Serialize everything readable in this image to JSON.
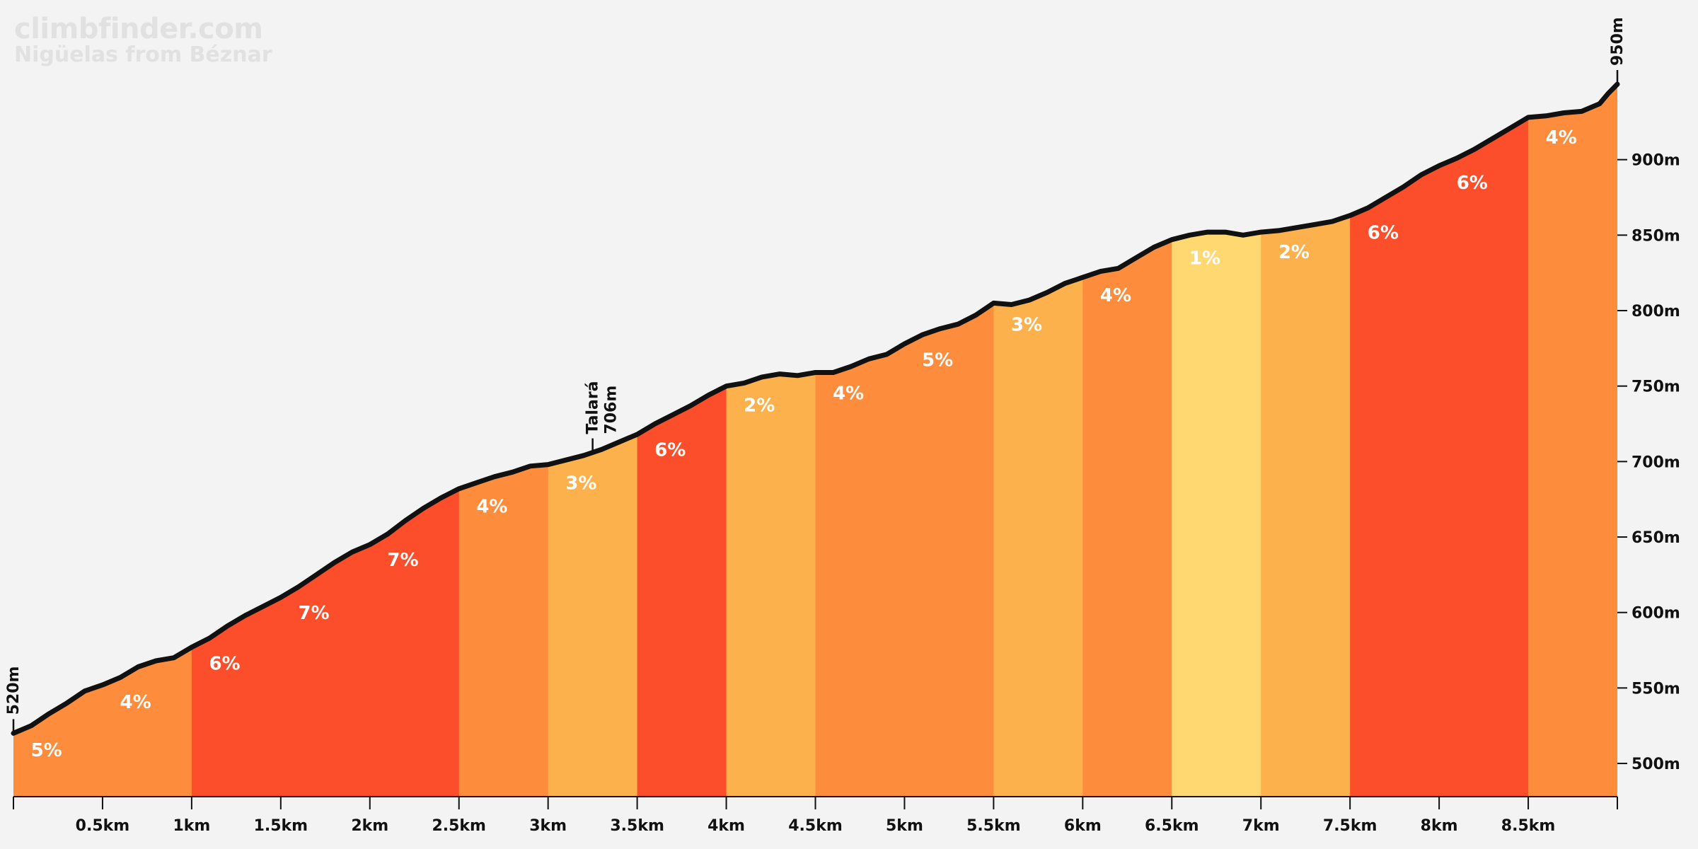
{
  "brand": {
    "site": "climbfinder.com",
    "subtitle": "Nigüelas from Béznar"
  },
  "colors": {
    "background": "#f3f3f3",
    "profile_line": "#111111",
    "grade_1": "#ffd872",
    "grade_2_3": "#fdb14c",
    "grade_4_5": "#fd8c3c",
    "grade_6_7": "#fc4e2a"
  },
  "chart_data": {
    "type": "area",
    "xlabel": "",
    "ylabel": "",
    "xlim": [
      0,
      9
    ],
    "ylim": [
      478,
      950
    ],
    "grid": false,
    "x_ticks": [
      0.5,
      1,
      1.5,
      2,
      2.5,
      3,
      3.5,
      4,
      4.5,
      5,
      5.5,
      6,
      6.5,
      7,
      7.5,
      8,
      8.5
    ],
    "x_tick_labels": [
      "0.5km",
      "1km",
      "1.5km",
      "2km",
      "2.5km",
      "3km",
      "3.5km",
      "4km",
      "4.5km",
      "5km",
      "5.5km",
      "6km",
      "6.5km",
      "7km",
      "7.5km",
      "8km",
      "8.5km"
    ],
    "y_ticks": [
      500,
      550,
      600,
      650,
      700,
      750,
      800,
      850,
      900
    ],
    "y_tick_labels": [
      "500m",
      "550m",
      "600m",
      "650m",
      "700m",
      "750m",
      "800m",
      "850m",
      "900m"
    ],
    "profile": {
      "x": [
        0,
        0.1,
        0.2,
        0.3,
        0.4,
        0.5,
        0.6,
        0.7,
        0.8,
        0.9,
        1.0,
        1.1,
        1.2,
        1.3,
        1.4,
        1.5,
        1.6,
        1.7,
        1.8,
        1.9,
        2.0,
        2.1,
        2.2,
        2.3,
        2.4,
        2.5,
        2.6,
        2.7,
        2.8,
        2.9,
        3.0,
        3.1,
        3.2,
        3.3,
        3.4,
        3.5,
        3.6,
        3.7,
        3.8,
        3.9,
        4.0,
        4.1,
        4.2,
        4.3,
        4.4,
        4.5,
        4.6,
        4.7,
        4.8,
        4.9,
        5.0,
        5.1,
        5.2,
        5.3,
        5.4,
        5.5,
        5.6,
        5.7,
        5.8,
        5.9,
        6.0,
        6.1,
        6.2,
        6.3,
        6.4,
        6.5,
        6.6,
        6.7,
        6.8,
        6.9,
        7.0,
        7.1,
        7.2,
        7.3,
        7.4,
        7.5,
        7.6,
        7.7,
        7.8,
        7.9,
        8.0,
        8.1,
        8.2,
        8.3,
        8.4,
        8.5,
        8.6,
        8.7,
        8.8,
        8.9,
        8.95,
        9.0
      ],
      "elevation": [
        520,
        525,
        533,
        540,
        548,
        552,
        557,
        564,
        568,
        570,
        577,
        583,
        591,
        598,
        604,
        610,
        617,
        625,
        633,
        640,
        645,
        652,
        661,
        669,
        676,
        682,
        686,
        690,
        693,
        697,
        698,
        701,
        704,
        708,
        713,
        718,
        725,
        731,
        737,
        744,
        750,
        752,
        756,
        758,
        757,
        759,
        759,
        763,
        768,
        771,
        778,
        784,
        788,
        791,
        797,
        805,
        804,
        807,
        812,
        818,
        822,
        826,
        828,
        835,
        842,
        847,
        850,
        852,
        852,
        850,
        852,
        853,
        855,
        857,
        859,
        863,
        868,
        875,
        882,
        890,
        896,
        901,
        907,
        914,
        921,
        928,
        929,
        931,
        932,
        937,
        944,
        950
      ]
    },
    "segments": [
      {
        "start": 0,
        "end": 1,
        "grade": "5%",
        "color": "#fd8c3c"
      },
      {
        "start": 1,
        "end": 2.5,
        "grade": "7%",
        "color": "#fc4e2a"
      },
      {
        "start": 2.5,
        "end": 3,
        "grade": "4%",
        "color": "#fd8c3c"
      },
      {
        "start": 3,
        "end": 3.5,
        "grade": "3%",
        "color": "#fdb14c"
      },
      {
        "start": 3.5,
        "end": 4,
        "grade": "6%",
        "color": "#fc4e2a"
      },
      {
        "start": 4,
        "end": 4.5,
        "grade": "2%",
        "color": "#fdb14c"
      },
      {
        "start": 4.5,
        "end": 5.5,
        "grade": "5%",
        "color": "#fd8c3c"
      },
      {
        "start": 5.5,
        "end": 6,
        "grade": "3%",
        "color": "#fdb14c"
      },
      {
        "start": 6,
        "end": 6.5,
        "grade": "4%",
        "color": "#fd8c3c"
      },
      {
        "start": 6.5,
        "end": 7,
        "grade": "1%",
        "color": "#ffd872"
      },
      {
        "start": 7,
        "end": 7.5,
        "grade": "2%",
        "color": "#fdb14c"
      },
      {
        "start": 7.5,
        "end": 8.5,
        "grade": "6%",
        "color": "#fc4e2a"
      },
      {
        "start": 8.5,
        "end": 9,
        "grade": "4%",
        "color": "#fd8c3c"
      }
    ],
    "grade_labels": [
      {
        "x": 0.05,
        "text": "5%"
      },
      {
        "x": 0.55,
        "text": "4%"
      },
      {
        "x": 1.05,
        "text": "6%"
      },
      {
        "x": 1.55,
        "text": "7%"
      },
      {
        "x": 2.05,
        "text": "7%"
      },
      {
        "x": 2.55,
        "text": "4%"
      },
      {
        "x": 3.05,
        "text": "3%"
      },
      {
        "x": 3.55,
        "text": "6%"
      },
      {
        "x": 4.05,
        "text": "2%"
      },
      {
        "x": 4.55,
        "text": "4%"
      },
      {
        "x": 5.05,
        "text": "5%"
      },
      {
        "x": 5.55,
        "text": "3%"
      },
      {
        "x": 6.05,
        "text": "4%"
      },
      {
        "x": 6.55,
        "text": "1%"
      },
      {
        "x": 7.05,
        "text": "2%"
      },
      {
        "x": 7.55,
        "text": "6%"
      },
      {
        "x": 8.05,
        "text": "6%"
      },
      {
        "x": 8.55,
        "text": "4%"
      }
    ],
    "annotations": [
      {
        "x": 0,
        "elevation": 520,
        "lines": [
          "520m"
        ]
      },
      {
        "x": 3.25,
        "elevation": 706,
        "lines": [
          "Talará",
          "706m"
        ]
      },
      {
        "x": 9,
        "elevation": 950,
        "lines": [
          "950m"
        ]
      }
    ]
  }
}
